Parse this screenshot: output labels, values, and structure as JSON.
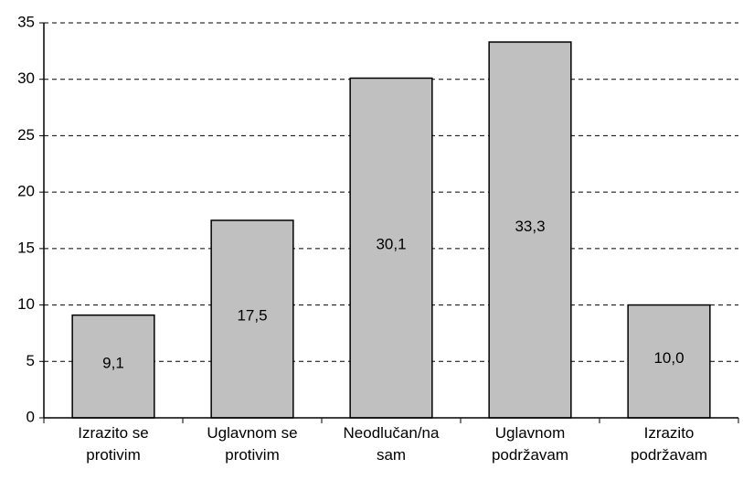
{
  "chart_data": {
    "type": "bar",
    "categories": [
      "Izrazito se protivim",
      "Uglavnom se protivim",
      "Neodlučan/na sam",
      "Uglavnom podržavam",
      "Izrazito podržavam"
    ],
    "values": [
      9.1,
      17.5,
      30.1,
      33.3,
      10.0
    ],
    "value_labels": [
      "9,1",
      "17,5",
      "30,1",
      "33,3",
      "10,0"
    ],
    "color": "#c0c0c0",
    "ylim": [
      0,
      35
    ],
    "yticks": [
      0,
      5,
      10,
      15,
      20,
      25,
      30,
      35
    ],
    "grid": true
  }
}
